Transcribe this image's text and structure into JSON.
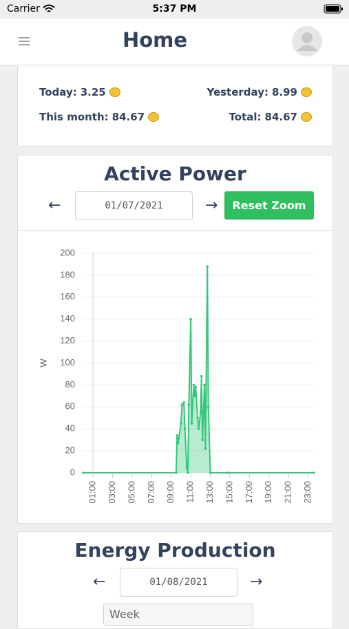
{
  "status_bar": {
    "carrier": "Carrier",
    "time": "5:37 PM"
  },
  "header": {
    "title": "Home"
  },
  "stats": [
    {
      "label": "Today:",
      "value": "3.25"
    },
    {
      "label": "Yesterday:",
      "value": "8.99"
    },
    {
      "label": "This month:",
      "value": "84.67"
    },
    {
      "label": "Total:",
      "value": "84.67"
    }
  ],
  "active_power": {
    "title": "Active Power",
    "date": "01/07/2021",
    "reset_button": "Reset Zoom"
  },
  "chart_data": {
    "type": "area",
    "ylabel": "W",
    "color": "#34c77b",
    "grid": true,
    "x": [
      0,
      9.5,
      9.6,
      9.7,
      10.0,
      10.1,
      10.3,
      10.4,
      10.6,
      10.7,
      10.8,
      11.0,
      11.1,
      11.3,
      11.4,
      11.5,
      11.7,
      11.8,
      12.0,
      12.1,
      12.2,
      12.4,
      12.5,
      12.7,
      12.8,
      13.0,
      14.8,
      23.6
    ],
    "values": [
      0,
      0,
      34,
      27,
      45,
      62,
      64,
      40,
      5,
      0,
      62,
      140,
      45,
      80,
      70,
      78,
      50,
      40,
      55,
      88,
      30,
      80,
      22,
      188,
      60,
      0,
      0,
      0
    ],
    "xlim": [
      0,
      23.6
    ],
    "xticks": [
      {
        "value": 1,
        "label": "01:00"
      },
      {
        "value": 3,
        "label": "03:00"
      },
      {
        "value": 5,
        "label": "05:00"
      },
      {
        "value": 7,
        "label": "07:00"
      },
      {
        "value": 9,
        "label": "09:00"
      },
      {
        "value": 11,
        "label": "11:00"
      },
      {
        "value": 13,
        "label": "13:00"
      },
      {
        "value": 15,
        "label": "15:00"
      },
      {
        "value": 17,
        "label": "17:00"
      },
      {
        "value": 19,
        "label": "19:00"
      },
      {
        "value": 21,
        "label": "21:00"
      },
      {
        "value": 23,
        "label": "23:00"
      }
    ],
    "ylim": [
      0,
      200
    ],
    "yticks": [
      0,
      20,
      40,
      60,
      80,
      100,
      120,
      140,
      160,
      180,
      200
    ]
  },
  "energy_production": {
    "title": "Energy Production",
    "date": "01/08/2021",
    "period": "Week"
  }
}
